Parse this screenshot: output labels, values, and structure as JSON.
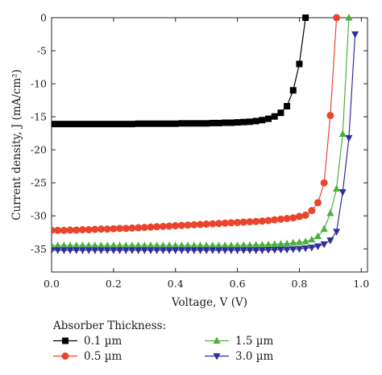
{
  "chart_data": {
    "type": "line",
    "xlabel": "Voltage, V (V)",
    "ylabel": "Current density, J (mA/cm²)",
    "xlim": [
      0.0,
      1.02
    ],
    "ylim": [
      -38.5,
      0
    ],
    "xticks": [
      "0.0",
      "0.2",
      "0.4",
      "0.6",
      "0.8",
      "1.0"
    ],
    "yticks": [
      "0",
      "-5",
      "-10",
      "-15",
      "-20",
      "-25",
      "-30",
      "-35"
    ],
    "legend_title": "Absorber Thickness:",
    "legend_position": "bottom",
    "grid": false,
    "series": [
      {
        "name": "0.1 µm",
        "marker": "square",
        "color": "#000000",
        "x": [
          0.0,
          0.02,
          0.04,
          0.06,
          0.08,
          0.1,
          0.12,
          0.14,
          0.16,
          0.18,
          0.2,
          0.22,
          0.24,
          0.26,
          0.28,
          0.3,
          0.32,
          0.34,
          0.36,
          0.38,
          0.4,
          0.42,
          0.44,
          0.46,
          0.48,
          0.5,
          0.52,
          0.54,
          0.56,
          0.58,
          0.6,
          0.62,
          0.64,
          0.66,
          0.68,
          0.7,
          0.72,
          0.74,
          0.76,
          0.78,
          0.8,
          0.82
        ],
        "y": [
          -16.1,
          -16.1,
          -16.1,
          -16.1,
          -16.1,
          -16.1,
          -16.1,
          -16.1,
          -16.1,
          -16.1,
          -16.1,
          -16.1,
          -16.1,
          -16.1,
          -16.05,
          -16.05,
          -16.05,
          -16.05,
          -16.05,
          -16.05,
          -16.05,
          -16.0,
          -16.0,
          -16.0,
          -16.0,
          -16.0,
          -15.95,
          -15.95,
          -15.9,
          -15.9,
          -15.85,
          -15.8,
          -15.75,
          -15.65,
          -15.5,
          -15.3,
          -14.95,
          -14.4,
          -13.4,
          -11.0,
          -7.0,
          0.0
        ]
      },
      {
        "name": "0.5 µm",
        "marker": "circle",
        "color": "#e8452c",
        "x": [
          0.0,
          0.02,
          0.04,
          0.06,
          0.08,
          0.1,
          0.12,
          0.14,
          0.16,
          0.18,
          0.2,
          0.22,
          0.24,
          0.26,
          0.28,
          0.3,
          0.32,
          0.34,
          0.36,
          0.38,
          0.4,
          0.42,
          0.44,
          0.46,
          0.48,
          0.5,
          0.52,
          0.54,
          0.56,
          0.58,
          0.6,
          0.62,
          0.64,
          0.66,
          0.68,
          0.7,
          0.72,
          0.74,
          0.76,
          0.78,
          0.8,
          0.82,
          0.84,
          0.86,
          0.88,
          0.9,
          0.92
        ],
        "y": [
          -32.2,
          -32.2,
          -32.2,
          -32.15,
          -32.15,
          -32.1,
          -32.1,
          -32.05,
          -32.0,
          -32.0,
          -31.95,
          -31.9,
          -31.9,
          -31.85,
          -31.8,
          -31.75,
          -31.7,
          -31.65,
          -31.6,
          -31.55,
          -31.5,
          -31.45,
          -31.4,
          -31.35,
          -31.3,
          -31.25,
          -31.2,
          -31.15,
          -31.1,
          -31.05,
          -31.0,
          -30.95,
          -30.9,
          -30.85,
          -30.8,
          -30.7,
          -30.6,
          -30.5,
          -30.4,
          -30.3,
          -30.1,
          -29.9,
          -29.2,
          -28.0,
          -25.0,
          -14.8,
          0.0
        ]
      },
      {
        "name": "1.5 µm",
        "marker": "triangle-up",
        "color": "#4caf3d",
        "x": [
          0.0,
          0.02,
          0.04,
          0.06,
          0.08,
          0.1,
          0.12,
          0.14,
          0.16,
          0.18,
          0.2,
          0.22,
          0.24,
          0.26,
          0.28,
          0.3,
          0.32,
          0.34,
          0.36,
          0.38,
          0.4,
          0.42,
          0.44,
          0.46,
          0.48,
          0.5,
          0.52,
          0.54,
          0.56,
          0.58,
          0.6,
          0.62,
          0.64,
          0.66,
          0.68,
          0.7,
          0.72,
          0.74,
          0.76,
          0.78,
          0.8,
          0.82,
          0.84,
          0.86,
          0.88,
          0.9,
          0.92,
          0.94,
          0.96
        ],
        "y": [
          -34.5,
          -34.5,
          -34.5,
          -34.5,
          -34.5,
          -34.5,
          -34.5,
          -34.5,
          -34.5,
          -34.5,
          -34.5,
          -34.5,
          -34.5,
          -34.5,
          -34.5,
          -34.5,
          -34.5,
          -34.5,
          -34.5,
          -34.5,
          -34.5,
          -34.5,
          -34.5,
          -34.5,
          -34.5,
          -34.5,
          -34.5,
          -34.5,
          -34.5,
          -34.5,
          -34.5,
          -34.45,
          -34.45,
          -34.4,
          -34.4,
          -34.35,
          -34.3,
          -34.25,
          -34.2,
          -34.1,
          -34.0,
          -33.9,
          -33.6,
          -33.1,
          -32.0,
          -29.6,
          -25.9,
          -17.6,
          0.0
        ]
      },
      {
        "name": "3.0 µm",
        "marker": "triangle-down",
        "color": "#2e2e9c",
        "x": [
          0.0,
          0.02,
          0.04,
          0.06,
          0.08,
          0.1,
          0.12,
          0.14,
          0.16,
          0.18,
          0.2,
          0.22,
          0.24,
          0.26,
          0.28,
          0.3,
          0.32,
          0.34,
          0.36,
          0.38,
          0.4,
          0.42,
          0.44,
          0.46,
          0.48,
          0.5,
          0.52,
          0.54,
          0.56,
          0.58,
          0.6,
          0.62,
          0.64,
          0.66,
          0.68,
          0.7,
          0.72,
          0.74,
          0.76,
          0.78,
          0.8,
          0.82,
          0.84,
          0.86,
          0.88,
          0.9,
          0.92,
          0.94,
          0.96,
          0.98
        ],
        "y": [
          -35.2,
          -35.2,
          -35.2,
          -35.2,
          -35.2,
          -35.2,
          -35.2,
          -35.2,
          -35.2,
          -35.2,
          -35.2,
          -35.2,
          -35.2,
          -35.2,
          -35.2,
          -35.2,
          -35.2,
          -35.2,
          -35.2,
          -35.2,
          -35.2,
          -35.2,
          -35.2,
          -35.2,
          -35.2,
          -35.2,
          -35.2,
          -35.2,
          -35.2,
          -35.2,
          -35.2,
          -35.2,
          -35.2,
          -35.2,
          -35.2,
          -35.15,
          -35.15,
          -35.1,
          -35.1,
          -35.05,
          -35.0,
          -34.9,
          -34.8,
          -34.6,
          -34.3,
          -33.7,
          -32.4,
          -26.4,
          -18.2,
          -2.5
        ]
      }
    ]
  }
}
